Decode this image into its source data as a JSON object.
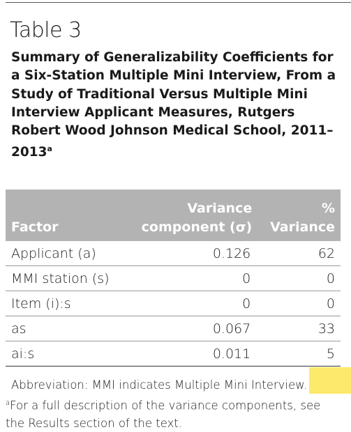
{
  "header": {
    "label": "Table 3",
    "title": "Summary of Generalizability Coefficients for a Six-Station Multiple Mini Interview, From a Study of Traditional Versus Multiple Mini Interview Applicant Measures, Rutgers Robert Wood Johnson Medical School, 2011–2013",
    "title_note": "a"
  },
  "table": {
    "columns": [
      "Factor",
      "Variance\ncomponent (σ)",
      "%\nVariance"
    ],
    "rows": [
      [
        "Applicant (a)",
        "0.126",
        "62"
      ],
      [
        "MMI station (s)",
        "0",
        "0"
      ],
      [
        "Item (i):s",
        "0",
        "0"
      ],
      [
        "as",
        "0.067",
        "33"
      ],
      [
        "ai:s",
        "0.011",
        "5"
      ]
    ]
  },
  "footnotes": {
    "abbreviation": "Abbreviation: MMI indicates Multiple Mini Interview.",
    "note_mark": "a",
    "note": "For a full description of the variance components, see the Results section of the text."
  }
}
